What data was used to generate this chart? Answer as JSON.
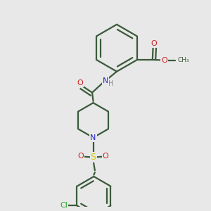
{
  "bg_color": "#e8e8e8",
  "bond_color": "#3a5a3a",
  "bond_width": 1.6,
  "atom_colors": {
    "N": "#2222cc",
    "O": "#cc2222",
    "S": "#cccc00",
    "Cl": "#22aa22",
    "C": "#3a5a3a",
    "H": "#888888"
  },
  "xlim": [
    0.0,
    1.0
  ],
  "ylim": [
    0.0,
    1.0
  ]
}
